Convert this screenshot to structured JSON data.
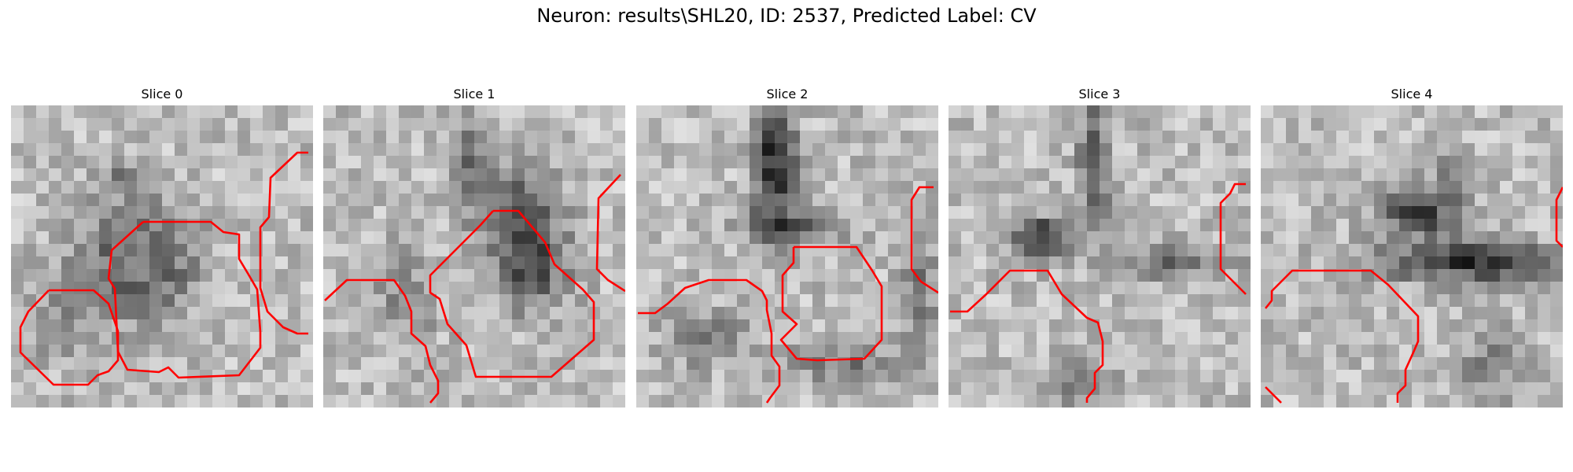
{
  "figure": {
    "title": "Neuron: results\\SHL20, ID: 2537, Predicted Label: CV"
  },
  "colors": {
    "contour": "#ff0000",
    "background": "#ffffff"
  },
  "slices": [
    {
      "title": "Slice 0"
    },
    {
      "title": "Slice 1"
    },
    {
      "title": "Slice 2"
    },
    {
      "title": "Slice 3"
    },
    {
      "title": "Slice 4"
    }
  ]
}
